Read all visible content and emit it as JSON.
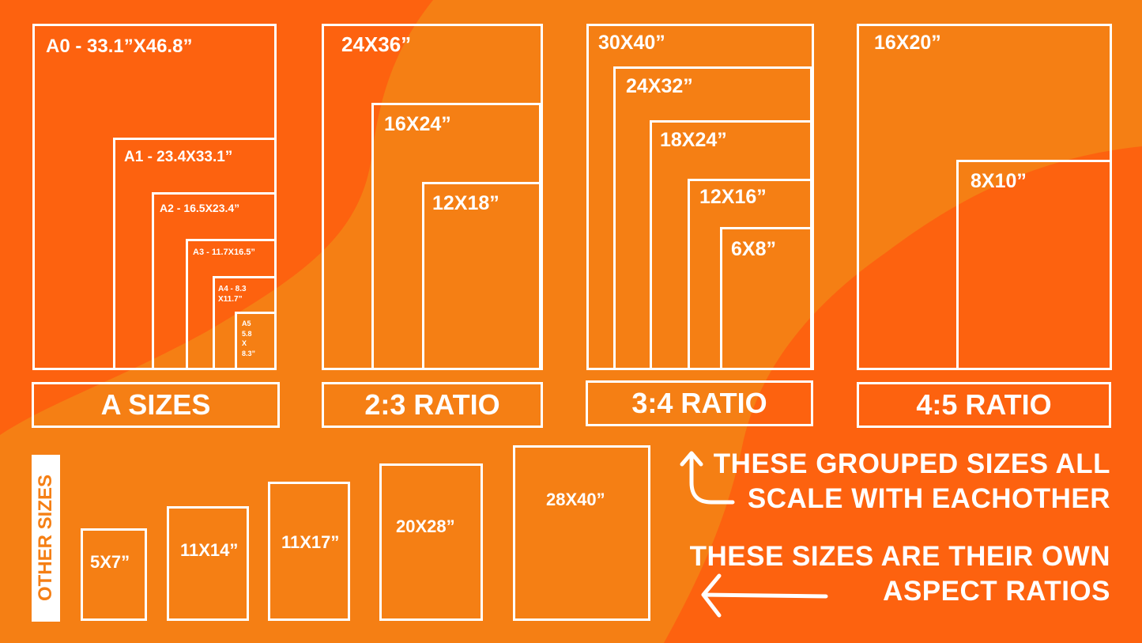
{
  "colors": {
    "dark_orange": "#fd620f",
    "light_orange": "#f57f14",
    "line": "#ffffff"
  },
  "groups": {
    "a_sizes": {
      "label": "A SIZES",
      "items": [
        "A0 - 33.1”X46.8”",
        "A1 - 23.4X33.1”",
        "A2 - 16.5X23.4”",
        "A3 - 11.7X16.5”",
        "A4 - 8.3\nX11.7”",
        "A5\n5.8\nX\n8.3”"
      ]
    },
    "ratio_2_3": {
      "label": "2:3 RATIO",
      "items": [
        "24X36”",
        "16X24”",
        "12X18”"
      ]
    },
    "ratio_3_4": {
      "label": "3:4 RATIO",
      "items": [
        "30X40”",
        "24X32”",
        "18X24”",
        "12X16”",
        "6X8”"
      ]
    },
    "ratio_4_5": {
      "label": "4:5 RATIO",
      "items": [
        "16X20”",
        "8X10”"
      ]
    }
  },
  "other_sizes": {
    "label": "OTHER SIZES",
    "items": [
      "5X7”",
      "11X14”",
      "11X17”",
      "20X28”",
      "28X40”"
    ]
  },
  "notes": {
    "grouped": "THESE GROUPED SIZES ALL\nSCALE WITH EACHOTHER",
    "own": "THESE SIZES ARE THEIR OWN\nASPECT RATIOS"
  },
  "icons": {
    "grouped_arrow": "curved-up-arrow-icon",
    "own_arrow": "left-arrow-icon"
  }
}
